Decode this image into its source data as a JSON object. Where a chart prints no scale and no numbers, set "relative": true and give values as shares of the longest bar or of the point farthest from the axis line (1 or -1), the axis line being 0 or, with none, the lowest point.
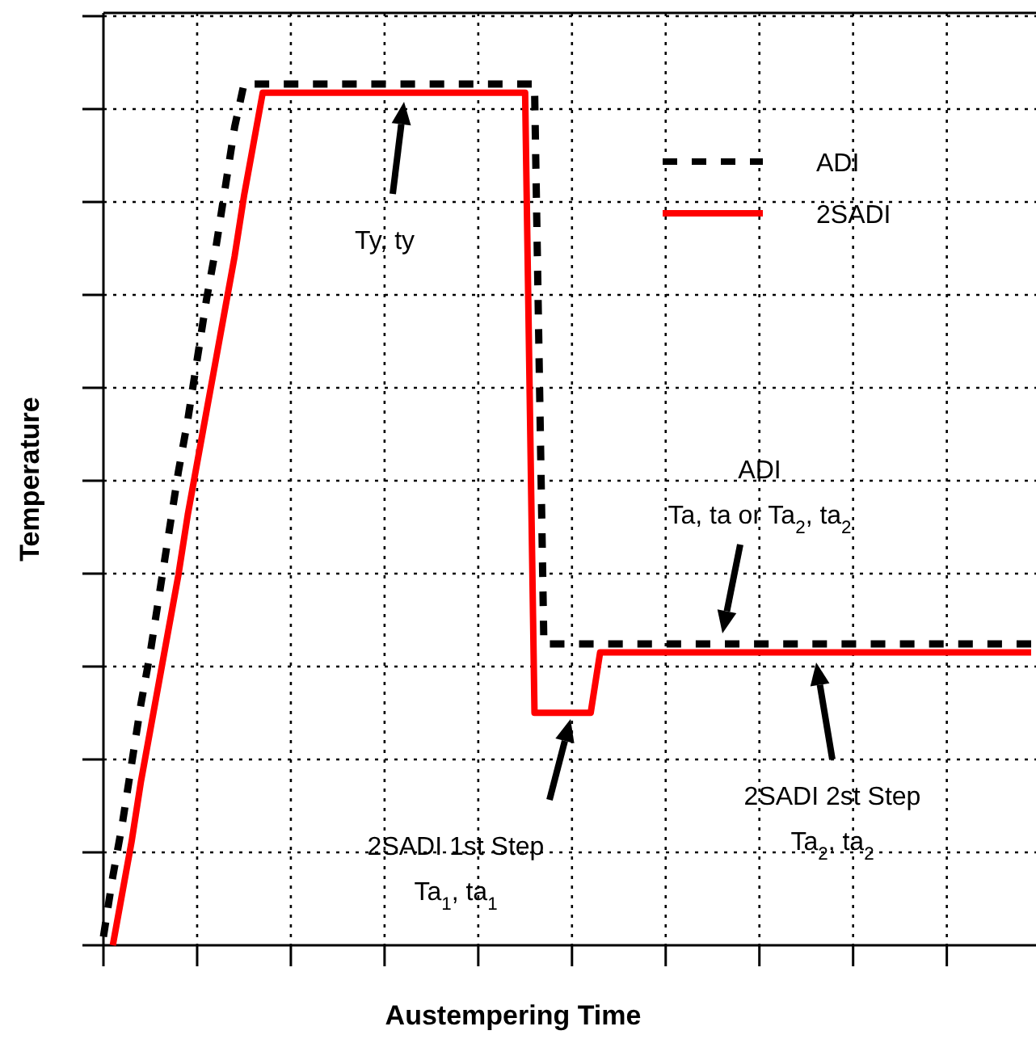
{
  "chart_data": {
    "type": "line",
    "relative": true,
    "xlabel": "Austempering Time",
    "ylabel": "Temperature",
    "categories": [
      null,
      null,
      null,
      null,
      null,
      null,
      null,
      null,
      null,
      null,
      null,
      null,
      null,
      null,
      null,
      null,
      null,
      null,
      null,
      null,
      null,
      null,
      null,
      null,
      null,
      null,
      null,
      null,
      null,
      null,
      null,
      null,
      null,
      null,
      null,
      null,
      null,
      null,
      null,
      null,
      null,
      null,
      null,
      null,
      null,
      null,
      null,
      null,
      null,
      null,
      null,
      null,
      null,
      null,
      null,
      null,
      null,
      null,
      null,
      null,
      null,
      null,
      null,
      null,
      null,
      null,
      null,
      null,
      null,
      null,
      null,
      null,
      null,
      null,
      null,
      null,
      null,
      null,
      null,
      null,
      null,
      null,
      null,
      null,
      null,
      null,
      null,
      null,
      null,
      null,
      null,
      null,
      null,
      null,
      null,
      null,
      null,
      null,
      null,
      null
    ],
    "grid": true,
    "legend": "top right",
    "series": [
      {
        "name": "ADI",
        "color": "#000000",
        "line_style": "dashed",
        "values": [
          0.01,
          0.08,
          0.14,
          0.21,
          0.28,
          0.34,
          0.41,
          0.48,
          0.55,
          0.61,
          0.68,
          0.75,
          0.81,
          0.88,
          0.95,
          1,
          1,
          1,
          1,
          1,
          1,
          1,
          1,
          1,
          1,
          1,
          1,
          1,
          1,
          1,
          1,
          1,
          1,
          1,
          1,
          1,
          1,
          1,
          1,
          1,
          1,
          1,
          1,
          1,
          1,
          1,
          1,
          0.35,
          0.35,
          0.35,
          0.35,
          0.35,
          0.35,
          0.35,
          0.35,
          0.35,
          0.35,
          0.35,
          0.35,
          0.35,
          0.35,
          0.35,
          0.35,
          0.35,
          0.35,
          0.35,
          0.35,
          0.35,
          0.35,
          0.35,
          0.35,
          0.35,
          0.35,
          0.35,
          0.35,
          0.35,
          0.35,
          0.35,
          0.35,
          0.35,
          0.35,
          0.35,
          0.35,
          0.35,
          0.35,
          0.35,
          0.35,
          0.35,
          0.35,
          0.35,
          0.35,
          0.35,
          0.35,
          0.35,
          0.35,
          0.35,
          0.35,
          0.35,
          0.35,
          0.35
        ]
      },
      {
        "name": "2SADI",
        "color": "#ff0000",
        "line_style": "solid",
        "values": [
          null,
          0,
          0.06,
          0.12,
          0.19,
          0.25,
          0.31,
          0.37,
          0.43,
          0.5,
          0.56,
          0.62,
          0.68,
          0.74,
          0.8,
          0.87,
          0.93,
          0.99,
          0.99,
          0.99,
          0.99,
          0.99,
          0.99,
          0.99,
          0.99,
          0.99,
          0.99,
          0.99,
          0.99,
          0.99,
          0.99,
          0.99,
          0.99,
          0.99,
          0.99,
          0.99,
          0.99,
          0.99,
          0.99,
          0.99,
          0.99,
          0.99,
          0.99,
          0.99,
          0.99,
          0.99,
          0.27,
          0.27,
          0.27,
          0.27,
          0.27,
          0.27,
          0.27,
          0.34,
          0.34,
          0.34,
          0.34,
          0.34,
          0.34,
          0.34,
          0.34,
          0.34,
          0.34,
          0.34,
          0.34,
          0.34,
          0.34,
          0.34,
          0.34,
          0.34,
          0.34,
          0.34,
          0.34,
          0.34,
          0.34,
          0.34,
          0.34,
          0.34,
          0.34,
          0.34,
          0.34,
          0.34,
          0.34,
          0.34,
          0.34,
          0.34,
          0.34,
          0.34,
          0.34,
          0.34,
          0.34,
          0.34,
          0.34,
          0.34,
          0.34,
          0.34,
          0.34,
          0.34,
          0.34,
          0.34
        ]
      }
    ],
    "annotations": [
      "Ty, ty",
      "ADI\nTa, ta or Ta$_{2}$, ta$_{2}$",
      "2SADI 1st Step\nTa$_{1}$, ta$_{1}$",
      "2SADI 2st Step\nTa$_{2}$, ta$_{2}$"
    ]
  }
}
